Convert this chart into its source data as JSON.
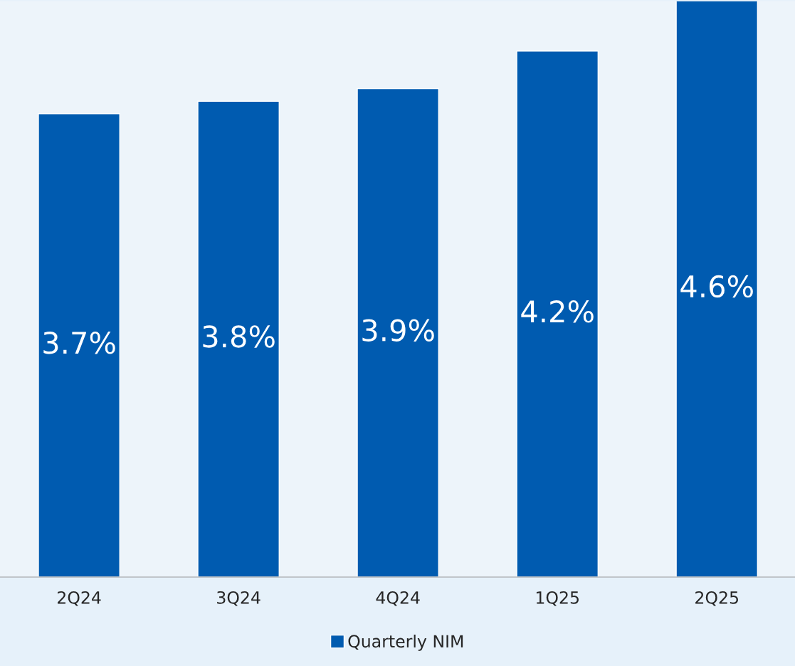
{
  "chart_data": {
    "type": "bar",
    "categories": [
      "2Q24",
      "3Q24",
      "4Q24",
      "1Q25",
      "2Q25"
    ],
    "series": [
      {
        "name": "Quarterly NIM",
        "color": "#005bb0",
        "values": [
          3.7,
          3.8,
          3.9,
          4.2,
          4.6
        ],
        "value_labels": [
          "3.7%",
          "3.8%",
          "3.9%",
          "4.2%",
          "4.6%"
        ]
      }
    ],
    "legend": "bottom"
  }
}
